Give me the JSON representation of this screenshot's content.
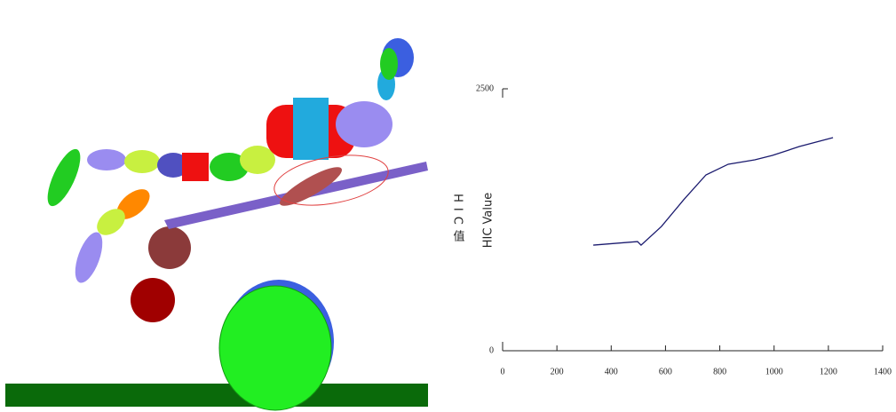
{
  "chart_data": {
    "type": "line",
    "x": [
      334,
      497,
      510,
      585,
      667,
      749,
      831,
      929,
      994,
      1093,
      1217
    ],
    "series": [
      {
        "name": "HIC Value",
        "color": "#1a1a6e",
        "values": [
          1008,
          1042,
          1008,
          1186,
          1441,
          1678,
          1780,
          1822,
          1864,
          1949,
          2034
        ]
      }
    ],
    "y_label": "HIC Value",
    "y_label_cn": "HIC值",
    "xlim": [
      0,
      1400
    ],
    "xticks": [
      0,
      200,
      400,
      600,
      800,
      1000,
      1200,
      1400
    ],
    "ylim": [
      0,
      2500
    ],
    "yticks": [
      0,
      2500
    ],
    "grid": false
  }
}
